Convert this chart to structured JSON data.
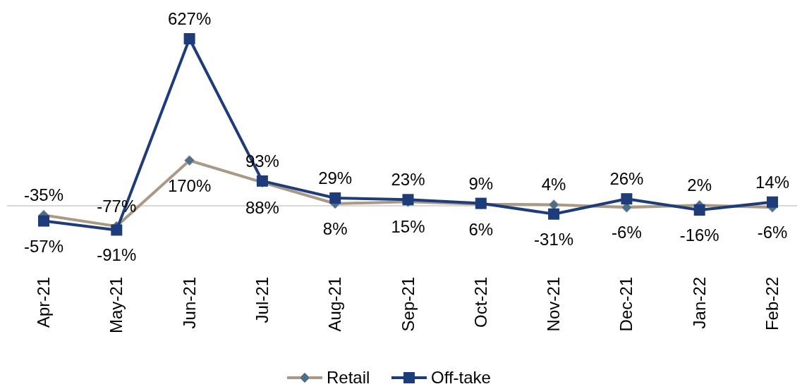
{
  "chart_data": {
    "type": "line",
    "categories": [
      "Apr-21",
      "May-21",
      "Jun-21",
      "Jul-21",
      "Aug-21",
      "Sep-21",
      "Oct-21",
      "Nov-21",
      "Dec-21",
      "Jan-22",
      "Feb-22"
    ],
    "series": [
      {
        "name": "Retail",
        "color": "#a89a86",
        "marker": "diamond",
        "values": [
          -35,
          -77,
          170,
          88,
          8,
          15,
          6,
          4,
          -6,
          2,
          -6
        ],
        "value_labels": [
          "-35%",
          "-77%",
          "170%",
          "88%",
          "8%",
          "15%",
          "6%",
          "4%",
          "-6%",
          "2%",
          "-6%"
        ]
      },
      {
        "name": "Off-take",
        "color": "#1f3c7a",
        "marker": "square",
        "values": [
          -57,
          -91,
          627,
          93,
          29,
          23,
          9,
          -31,
          26,
          -16,
          14
        ],
        "value_labels": [
          "-57%",
          "-91%",
          "627%",
          "93%",
          "29%",
          "23%",
          "9%",
          "-31%",
          "26%",
          "-16%",
          "14%"
        ]
      }
    ],
    "legend": "bottom"
  }
}
